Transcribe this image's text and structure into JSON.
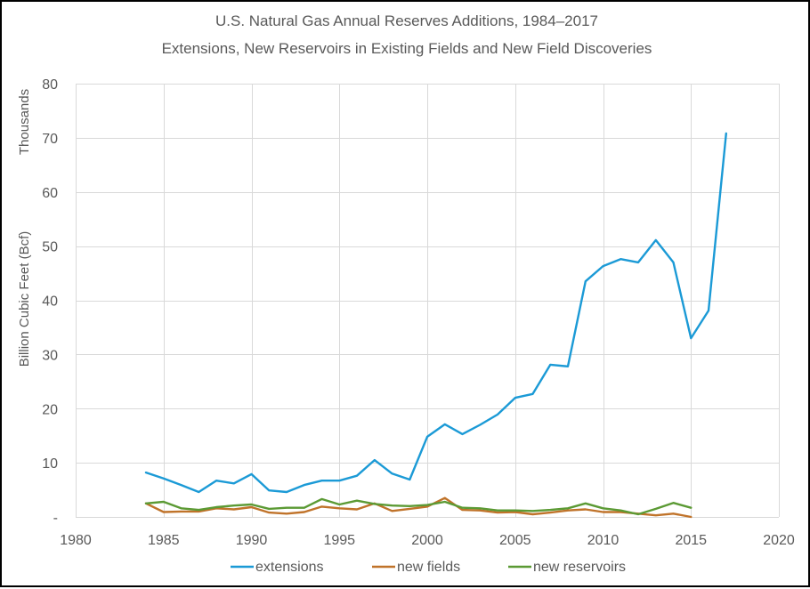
{
  "chart_data": {
    "type": "line",
    "title": "U.S. Natural Gas Annual Reserves Additions, 1984–2017",
    "subtitle": "Extensions, New Reservoirs in Existing Fields and New Field Discoveries",
    "xlabel": "",
    "ylabel": "Billion Cubic Feet (Bcf)",
    "ylabel_unit": "Thousands",
    "xlim": [
      1980,
      2020
    ],
    "ylim": [
      0,
      80
    ],
    "x_ticks": [
      1980,
      1985,
      1990,
      1995,
      2000,
      2005,
      2010,
      2015,
      2020
    ],
    "x_tick_labels": [
      "1980",
      "1985",
      "1990",
      "1995",
      "2000",
      "2005",
      "2010",
      "2015",
      "2020"
    ],
    "y_ticks": [
      0,
      10,
      20,
      30,
      40,
      50,
      60,
      70,
      80
    ],
    "y_tick_labels": [
      "-",
      "10",
      "20",
      "30",
      "40",
      "50",
      "60",
      "70",
      "80"
    ],
    "grid": true,
    "legend_position": "bottom",
    "series": [
      {
        "name": "extensions",
        "color": "#1b9ad6",
        "x": [
          1984,
          1985,
          1986,
          1987,
          1988,
          1989,
          1990,
          1991,
          1992,
          1993,
          1994,
          1995,
          1996,
          1997,
          1998,
          1999,
          2000,
          2001,
          2002,
          2003,
          2004,
          2005,
          2006,
          2007,
          2008,
          2009,
          2010,
          2011,
          2012,
          2013,
          2014,
          2015,
          2016,
          2017
        ],
        "values": [
          8.2,
          7.1,
          5.9,
          4.6,
          6.7,
          6.2,
          7.9,
          4.9,
          4.6,
          5.9,
          6.7,
          6.7,
          7.6,
          10.5,
          8.0,
          6.9,
          14.8,
          17.1,
          15.3,
          17.0,
          18.9,
          22.0,
          22.7,
          28.1,
          27.8,
          43.5,
          46.3,
          47.6,
          47.0,
          51.1,
          47.0,
          33.0,
          38.1,
          70.8
        ]
      },
      {
        "name": "new fields",
        "color": "#c0732a",
        "x": [
          1984,
          1985,
          1986,
          1987,
          1988,
          1989,
          1990,
          1991,
          1992,
          1993,
          1994,
          1995,
          1996,
          1997,
          1998,
          1999,
          2000,
          2001,
          2002,
          2003,
          2004,
          2005,
          2006,
          2007,
          2008,
          2009,
          2010,
          2011,
          2012,
          2013,
          2014,
          2015
        ],
        "values": [
          2.5,
          0.9,
          1.0,
          1.0,
          1.6,
          1.4,
          1.8,
          0.8,
          0.6,
          0.9,
          1.9,
          1.6,
          1.4,
          2.5,
          1.1,
          1.5,
          1.9,
          3.5,
          1.3,
          1.2,
          0.8,
          0.9,
          0.5,
          0.8,
          1.2,
          1.4,
          0.9,
          0.9,
          0.6,
          0.3,
          0.6,
          0.0
        ]
      },
      {
        "name": "new reservoirs",
        "color": "#5b9a34",
        "x": [
          1984,
          1985,
          1986,
          1987,
          1988,
          1989,
          1990,
          1991,
          1992,
          1993,
          1994,
          1995,
          1996,
          1997,
          1998,
          1999,
          2000,
          2001,
          2002,
          2003,
          2004,
          2005,
          2006,
          2007,
          2008,
          2009,
          2010,
          2011,
          2012,
          2013,
          2014,
          2015
        ],
        "values": [
          2.5,
          2.8,
          1.6,
          1.3,
          1.8,
          2.1,
          2.3,
          1.5,
          1.7,
          1.7,
          3.3,
          2.3,
          3.0,
          2.4,
          2.1,
          2.0,
          2.2,
          2.8,
          1.7,
          1.6,
          1.2,
          1.2,
          1.1,
          1.3,
          1.6,
          2.5,
          1.6,
          1.2,
          0.5,
          1.5,
          2.6,
          1.7
        ]
      }
    ]
  }
}
